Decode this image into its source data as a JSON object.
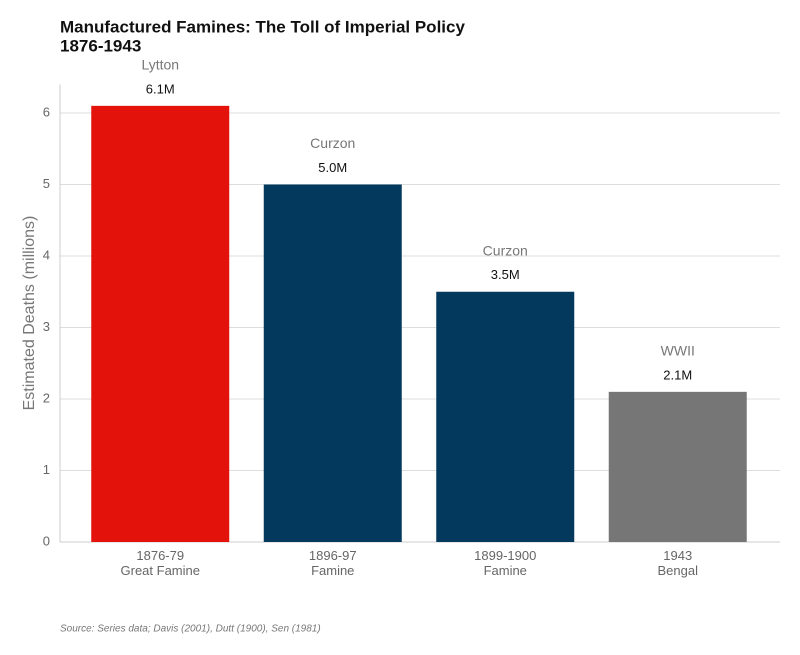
{
  "chart_data": {
    "type": "bar",
    "title": "Manufactured Famines: The Toll of Imperial Policy",
    "subtitle": "1876-1943",
    "y_label": "Estimated Deaths (millions)",
    "categories": [
      "1876-79\nGreat Famine",
      "1896-97\nFamine",
      "1899-1900\nFamine",
      "1943\nBengal"
    ],
    "values": [
      6.1,
      5.0,
      3.5,
      2.1
    ],
    "value_labels": [
      "6.1M",
      "5.0M",
      "3.5M",
      "2.1M"
    ],
    "colors": [
      "#e3120b",
      "#02395d",
      "#02395d",
      "#767676"
    ],
    "annotations": [
      "Lytton",
      "Curzon",
      "Curzon",
      "WWII"
    ],
    "ylim": [
      0,
      6.4
    ],
    "yticks": [
      0,
      1,
      2,
      3,
      4,
      5,
      6
    ],
    "grid": true,
    "source": "Source: Series data; Davis (2001), Dutt (1900), Sen (1981)"
  }
}
